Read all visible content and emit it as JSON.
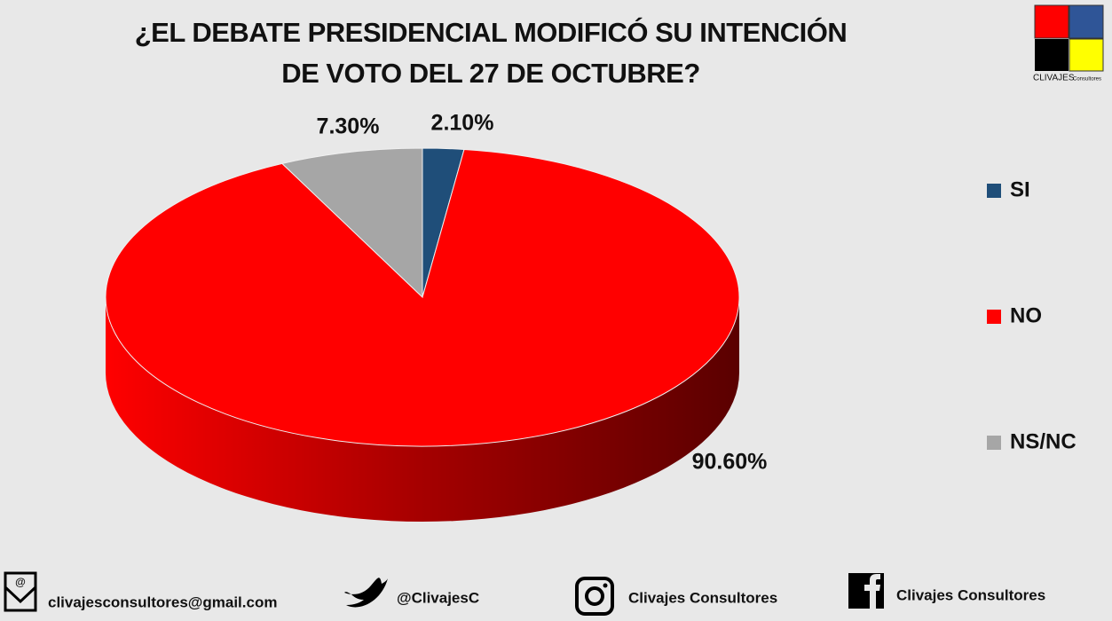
{
  "chart_data": {
    "type": "pie3d",
    "title": "¿EL DEBATE PRESIDENCIAL MODIFICÓ SU INTENCIÓN DE VOTO DEL 27 DE OCTUBRE?",
    "categories": [
      "SI",
      "NO",
      "NS/NC"
    ],
    "values": [
      2.1,
      90.6,
      7.3
    ],
    "value_labels": [
      "2.10%",
      "90.60%",
      "7.30%"
    ],
    "colors": [
      "#1f4e79",
      "#ff0000",
      "#a6a6a6"
    ],
    "legend": "right"
  },
  "logo": {
    "name": "CLIVAJES",
    "sub": "Consultores"
  },
  "footer": {
    "email": "clivajesconsultores@gmail.com",
    "twitter": "@ClivajesC",
    "instagram": "Clivajes Consultores",
    "facebook": "Clivajes Consultores"
  }
}
